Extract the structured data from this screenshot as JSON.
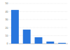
{
  "chart_data": {
    "type": "bar",
    "categories": [
      null,
      null,
      null,
      null,
      null
    ],
    "values": [
      42,
      17.5,
      8,
      2.6,
      1
    ],
    "color": "#2876dd",
    "ylim": [
      0,
      50
    ],
    "yticks": [
      0,
      10,
      20,
      30,
      40,
      50
    ],
    "grid": true
  }
}
